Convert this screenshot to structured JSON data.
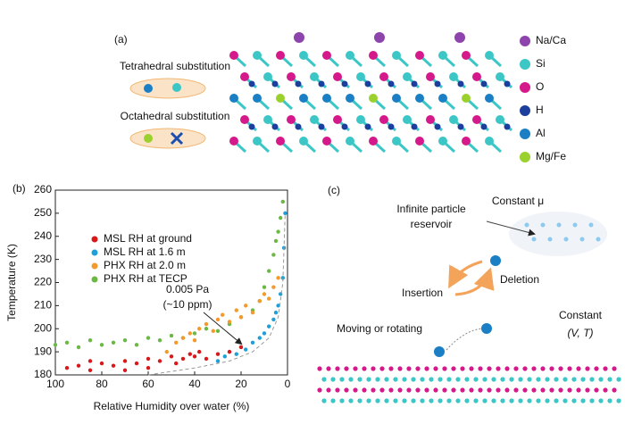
{
  "panel_a": {
    "label": "(a)",
    "tetrahedral": "Tetrahedral substitution",
    "octahedral": "Octahedral substitution",
    "atoms": [
      {
        "name": "Na/Ca",
        "color": "#8e44ad"
      },
      {
        "name": "Si",
        "color": "#3cc6c6"
      },
      {
        "name": "O",
        "color": "#d6198a"
      },
      {
        "name": "H",
        "color": "#1c3f9e"
      },
      {
        "name": "Al",
        "color": "#1a7fc4"
      },
      {
        "name": "Mg/Fe",
        "color": "#9bd12e"
      }
    ]
  },
  "chart_data": {
    "type": "scatter",
    "label": "(b)",
    "xlabel": "Relative Humidity over water (%)",
    "ylabel": "Temperature (K)",
    "xlim": [
      100,
      0
    ],
    "xticks": [
      100,
      80,
      60,
      40,
      20,
      0
    ],
    "ylim": [
      180,
      260
    ],
    "yticks": [
      180,
      190,
      200,
      210,
      220,
      230,
      240,
      250,
      260
    ],
    "series": [
      {
        "name": "MSL RH at ground",
        "color": "#d7191c",
        "x": [
          95,
          90,
          85,
          80,
          75,
          70,
          65,
          60,
          55,
          50,
          48,
          45,
          42,
          40,
          38,
          35,
          30,
          25,
          20,
          70,
          85,
          60
        ],
        "values": [
          183,
          184,
          182,
          185,
          184,
          186,
          185,
          187,
          186,
          188,
          185,
          187,
          189,
          188,
          190,
          187,
          189,
          190,
          192,
          182,
          186,
          183
        ]
      },
      {
        "name": "MSL RH at 1.6 m",
        "color": "#1f9fd8",
        "x": [
          30,
          27,
          25,
          22,
          20,
          18,
          15,
          12,
          10,
          8,
          6,
          5,
          4,
          3,
          2,
          1.5,
          1
        ],
        "values": [
          186,
          188,
          190,
          189,
          192,
          191,
          194,
          196,
          198,
          201,
          204,
          207,
          210,
          215,
          222,
          235,
          250
        ]
      },
      {
        "name": "PHX RH at 2.0 m",
        "color": "#f39a2b",
        "x": [
          52,
          48,
          45,
          42,
          40,
          38,
          35,
          32,
          30,
          28,
          25,
          22,
          20,
          18,
          15,
          12,
          10,
          8,
          6,
          4
        ],
        "values": [
          190,
          194,
          196,
          198,
          195,
          200,
          202,
          199,
          204,
          206,
          203,
          208,
          205,
          210,
          207,
          212,
          215,
          213,
          218,
          222
        ]
      },
      {
        "name": "PHX RH at TECP",
        "color": "#6bb844",
        "x": [
          100,
          95,
          90,
          85,
          80,
          75,
          70,
          65,
          60,
          55,
          50,
          45,
          40,
          35,
          30,
          25,
          20,
          15,
          12,
          10,
          8,
          6,
          5,
          4,
          3,
          2
        ],
        "values": [
          193,
          194,
          192,
          195,
          193,
          194,
          195,
          193,
          196,
          195,
          197,
          196,
          198,
          200,
          199,
          202,
          205,
          208,
          212,
          218,
          225,
          232,
          238,
          242,
          248,
          255
        ]
      }
    ],
    "annotation": [
      "0.005 Pa",
      "(~10 ppm)"
    ],
    "annotation_curve": {
      "x": [
        60,
        40,
        25,
        15,
        8,
        4,
        2,
        1
      ],
      "values": [
        180,
        183,
        186,
        190,
        196,
        205,
        220,
        250
      ]
    }
  },
  "panel_c": {
    "label": "(c)",
    "reservoir": [
      "Infinite particle",
      "reservoir"
    ],
    "constant_mu": "Constant μ",
    "insertion": "Insertion",
    "deletion": "Deletion",
    "moving": "Moving or rotating",
    "constant": "Constant",
    "vt": "(V, T)"
  }
}
